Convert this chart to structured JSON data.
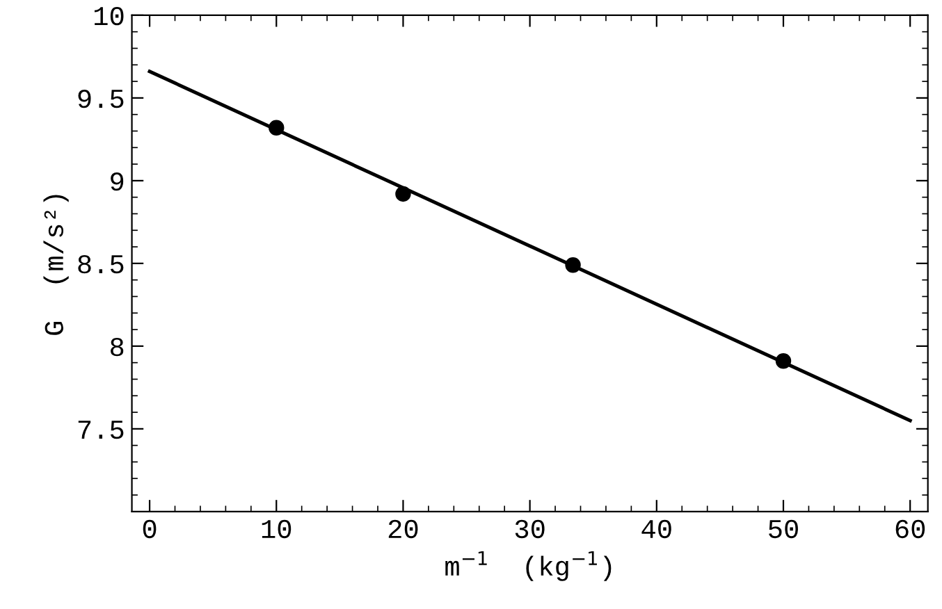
{
  "chart_data": {
    "type": "scatter",
    "xlabel": "m$^{−1}$  (kg$^{−1}$)",
    "ylabel": "G  (m/s²)",
    "series": [
      {
        "color": "#000000",
        "marker": "circle",
        "x": [
          10,
          20,
          33.4,
          50
        ],
        "values": [
          9.32,
          8.92,
          8.49,
          7.91
        ]
      },
      {
        "type": "line",
        "color": "#000000",
        "marker": "none",
        "line_style": "solid",
        "x": [
          0,
          60
        ],
        "values": [
          9.66,
          7.55
        ]
      }
    ],
    "xlim": [
      -1.4,
      61.4
    ],
    "ylim": [
      7,
      10
    ],
    "xticks": [
      0,
      10,
      20,
      30,
      40,
      50,
      60
    ],
    "yticks": [
      {
        "value": 7.5,
        "label": "7.5"
      },
      8,
      {
        "value": 8.5,
        "label": "8.5"
      },
      9,
      {
        "value": 9.5,
        "label": "9.5"
      },
      10
    ],
    "grid": false
  }
}
